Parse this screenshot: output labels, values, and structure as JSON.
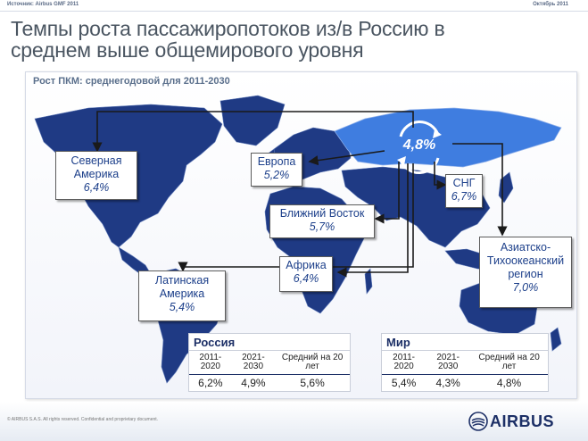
{
  "header": {
    "source": "Источник: Airbus GMF 2011",
    "date": "Октябрь 2011"
  },
  "title_line1": "Темпы роста пассажиропотоков из/в Россию в",
  "title_line2": "среднем выше общемирового уровня",
  "panel_label": "Рост ПКМ: среднегодовой для 2011-2030",
  "center_value": "4,8%",
  "regions": {
    "north_america": {
      "name_1": "Северная",
      "name_2": "Америка",
      "value": "6,4%"
    },
    "europe": {
      "name": "Европа",
      "value": "5,2%"
    },
    "middle_east": {
      "name": "Ближний Восток",
      "value": "5,7%"
    },
    "cis": {
      "name": "СНГ",
      "value": "6,7%"
    },
    "africa": {
      "name": "Африка",
      "value": "6,4%"
    },
    "latin_america": {
      "name_1": "Латинская",
      "name_2": "Америка",
      "value": "5,4%"
    },
    "asia_pacific": {
      "name_1": "Азиатско-",
      "name_2": "Тихоокеанский",
      "name_3": "регион",
      "value": "7,0%"
    }
  },
  "russia_table": {
    "title": "Россия",
    "headers": [
      "2011-2020",
      "2021-2030",
      "Средний на 20 лет"
    ],
    "values": [
      "6,2%",
      "4,9%",
      "5,6%"
    ]
  },
  "world_table": {
    "title": "Мир",
    "headers": [
      "2011-2020",
      "2021-2030",
      "Средний на 20 лет"
    ],
    "values": [
      "5,4%",
      "4,3%",
      "4,8%"
    ]
  },
  "footer": {
    "copyright": "© AIRBUS S.A.S. All rights reserved. Confidential and proprietary document.",
    "logo_text": "AIRBUS"
  },
  "colors": {
    "map_land": "#1f3a84",
    "russia_highlight": "#3f7de0",
    "arrow": "#1a1a1a",
    "text_blue": "#1c3f8a"
  }
}
